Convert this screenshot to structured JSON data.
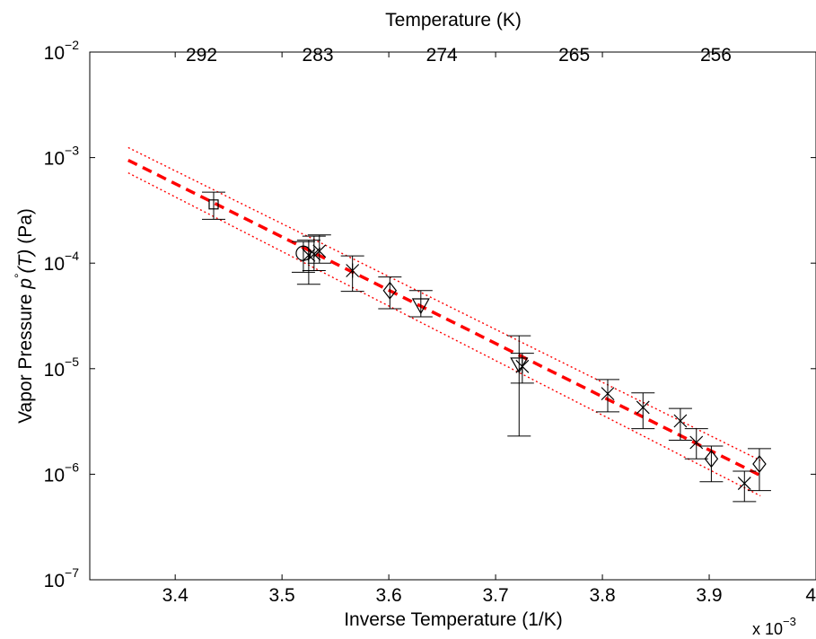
{
  "chart_data": {
    "type": "scatter",
    "title": "Temperature (K)",
    "xlabel": "Inverse Temperature (1/K)",
    "ylabel_prefix": "Vapor Pressure",
    "ylabel_symbol": "p",
    "ylabel_degree": "°",
    "ylabel_arg": "(T)",
    "ylabel_unit": "(Pa)",
    "x_multiplier": "x 10",
    "x_multiplier_exp": "−3",
    "xlim": [
      3.32,
      4.0
    ],
    "ylim_log10": [
      -7,
      -2
    ],
    "y_scale": "log",
    "grid": false,
    "x_ticks": [
      {
        "value": 3.4,
        "label": "3.4"
      },
      {
        "value": 3.5,
        "label": "3.5"
      },
      {
        "value": 3.6,
        "label": "3.6"
      },
      {
        "value": 3.7,
        "label": "3.7"
      },
      {
        "value": 3.8,
        "label": "3.8"
      },
      {
        "value": 3.9,
        "label": "3.9"
      },
      {
        "value": 4.0,
        "label": "4"
      }
    ],
    "top_ticks": [
      {
        "value": 292,
        "label": "292"
      },
      {
        "value": 283,
        "label": "283"
      },
      {
        "value": 274,
        "label": "274"
      },
      {
        "value": 265,
        "label": "265"
      },
      {
        "value": 256,
        "label": "256"
      }
    ],
    "y_ticks": [
      {
        "exp": -7,
        "base": "10",
        "sup": "−7"
      },
      {
        "exp": -6,
        "base": "10",
        "sup": "−6"
      },
      {
        "exp": -5,
        "base": "10",
        "sup": "−5"
      },
      {
        "exp": -4,
        "base": "10",
        "sup": "−4"
      },
      {
        "exp": -3,
        "base": "10",
        "sup": "−3"
      },
      {
        "exp": -2,
        "base": "10",
        "sup": "−2"
      }
    ],
    "points": [
      {
        "x": 3.436,
        "y": 0.00036,
        "low": 0.00026,
        "high": 0.00047,
        "marker": "square"
      },
      {
        "x": 3.52,
        "y": 0.000124,
        "low": 8.2e-05,
        "high": 0.00016,
        "marker": "circle"
      },
      {
        "x": 3.525,
        "y": 0.000119,
        "low": 6.3e-05,
        "high": 0.000165,
        "marker": "asterisk"
      },
      {
        "x": 3.53,
        "y": 0.000122,
        "low": 8.5e-05,
        "high": 0.00018,
        "marker": "x"
      },
      {
        "x": 3.535,
        "y": 0.00013,
        "low": 0.0001,
        "high": 0.000185,
        "marker": "x"
      },
      {
        "x": 3.566,
        "y": 8.5e-05,
        "low": 5.4e-05,
        "high": 0.000117,
        "marker": "asterisk"
      },
      {
        "x": 3.601,
        "y": 5.5e-05,
        "low": 3.7e-05,
        "high": 7.4e-05,
        "marker": "diamond"
      },
      {
        "x": 3.63,
        "y": 4e-05,
        "low": 3.1e-05,
        "high": 5.5e-05,
        "marker": "triangle-down"
      },
      {
        "x": 3.722,
        "y": 1.1e-05,
        "low": 2.3e-06,
        "high": 2.05e-05,
        "marker": "triangle-down"
      },
      {
        "x": 3.725,
        "y": 1.05e-05,
        "low": 7.3e-06,
        "high": 1.4e-05,
        "marker": "asterisk"
      },
      {
        "x": 3.805,
        "y": 5.8e-06,
        "low": 3.9e-06,
        "high": 7.9e-06,
        "marker": "x"
      },
      {
        "x": 3.838,
        "y": 4.3e-06,
        "low": 2.7e-06,
        "high": 5.9e-06,
        "marker": "x"
      },
      {
        "x": 3.873,
        "y": 3.2e-06,
        "low": 2.1e-06,
        "high": 4.2e-06,
        "marker": "x"
      },
      {
        "x": 3.888,
        "y": 2e-06,
        "low": 1.4e-06,
        "high": 2.7e-06,
        "marker": "x"
      },
      {
        "x": 3.902,
        "y": 1.4e-06,
        "low": 8.5e-07,
        "high": 1.85e-06,
        "marker": "diamond"
      },
      {
        "x": 3.933,
        "y": 8.2e-07,
        "low": 5.5e-07,
        "high": 1.07e-06,
        "marker": "x"
      },
      {
        "x": 3.947,
        "y": 1.25e-06,
        "low": 7e-07,
        "high": 1.75e-06,
        "marker": "diamond"
      }
    ],
    "fit_line": {
      "x": [
        3.356,
        3.948
      ],
      "log10_y": [
        -3.025,
        -6.012
      ],
      "color": "#ff0000",
      "style": "dashed"
    },
    "fit_upper": {
      "x": [
        3.356,
        3.948
      ],
      "log10_y": [
        -2.905,
        -5.87
      ],
      "color": "#ff0000",
      "style": "dotted"
    },
    "fit_lower": {
      "x": [
        3.356,
        3.948
      ],
      "log10_y": [
        -3.145,
        -6.205
      ],
      "color": "#ff0000",
      "style": "dotted"
    },
    "data_color": "#000000"
  }
}
